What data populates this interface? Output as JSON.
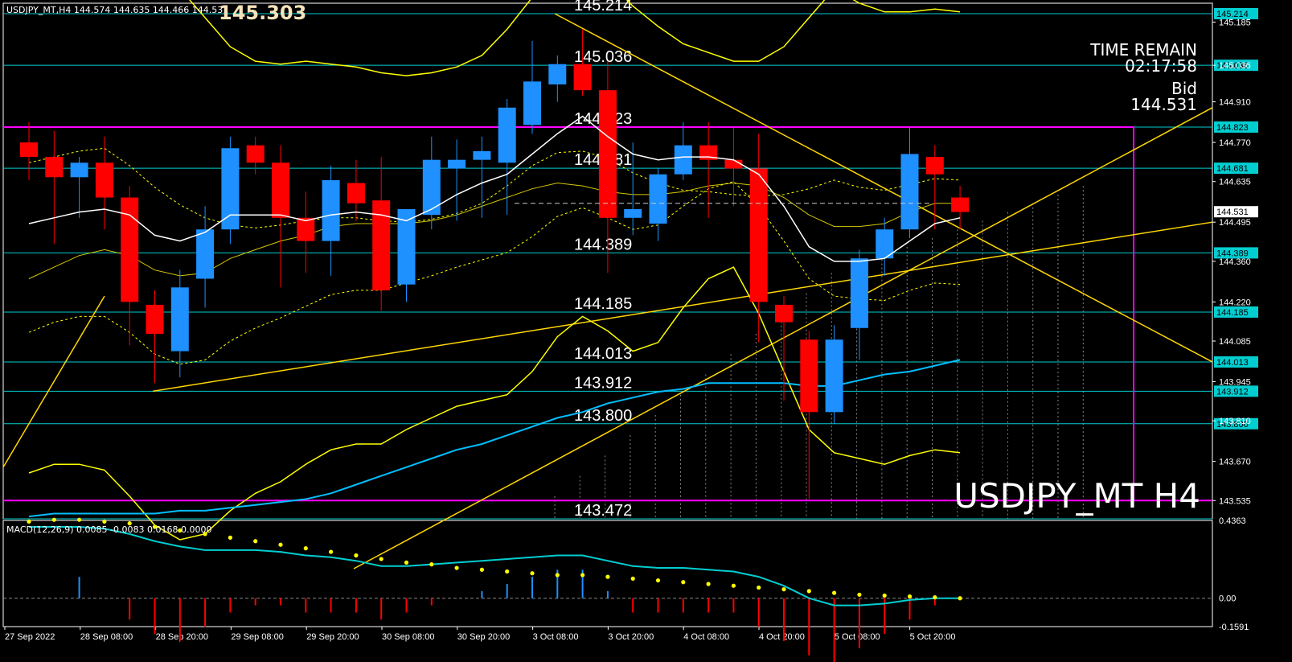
{
  "header": {
    "symbol": "USDJPY_MT,H4",
    "ohlc": "144.574 144.635 144.466 144.531",
    "big_price": "145.303"
  },
  "overlay": {
    "time_remain_label": "TIME REMAIN",
    "time_remain_value": "02:17:58",
    "bid_label": "Bid",
    "bid_value": "144.531",
    "symbol_watermark": "USDJPY_MT H4"
  },
  "macd": {
    "label": "MACD(12,26,9) 0.0085 -0.0083 0.0168 0.0000",
    "axis_ticks": [
      "0.4363",
      "0.00",
      "-0.1591"
    ],
    "range": [
      -0.1591,
      0.4363
    ]
  },
  "colors": {
    "bull": "#1e90ff",
    "bear": "#ff0000",
    "level_line": "#00ced1",
    "trend_line": "#ffd700",
    "bollinger": "#ffff00",
    "magenta": "#ff00ff",
    "ma_white": "#ffffff",
    "ma_cyan": "#00bfff"
  },
  "chart_data": {
    "type": "candlestick",
    "ylim": [
      143.472,
      145.25
    ],
    "y_ticks": [
      "145.185",
      "145.036",
      "144.910",
      "144.770",
      "144.635",
      "144.495",
      "144.360",
      "144.220",
      "144.085",
      "143.945",
      "143.810",
      "143.670",
      "143.535"
    ],
    "x_ticks": [
      "27 Sep 2022",
      "28 Sep 08:00",
      "28 Sep 20:00",
      "29 Sep 08:00",
      "29 Sep 20:00",
      "30 Sep 08:00",
      "30 Sep 20:00",
      "3 Oct 08:00",
      "3 Oct 20:00",
      "4 Oct 08:00",
      "4 Oct 20:00",
      "5 Oct 08:00",
      "5 Oct 20:00"
    ],
    "levels": [
      {
        "value": 145.214,
        "label": "145.214",
        "tag": "145.214"
      },
      {
        "value": 145.036,
        "label": "145.036",
        "tag": "145.036"
      },
      {
        "value": 144.823,
        "label": "144.823",
        "tag": "144.823"
      },
      {
        "value": 144.681,
        "label": "144.681",
        "tag": "144.681"
      },
      {
        "value": 144.389,
        "label": "144.389",
        "tag": "144.389"
      },
      {
        "value": 144.185,
        "label": "144.185",
        "tag": "144.185"
      },
      {
        "value": 144.013,
        "label": "144.013",
        "tag": "144.013"
      },
      {
        "value": 143.912,
        "label": "143.912",
        "tag": "143.912"
      },
      {
        "value": 143.8,
        "label": "143.800",
        "tag": "143.800"
      },
      {
        "value": 143.472,
        "label": "143.472",
        "tag": ""
      }
    ],
    "bid_tag": "144.531",
    "candles": [
      {
        "o": 144.77,
        "h": 144.84,
        "l": 144.64,
        "c": 144.72
      },
      {
        "o": 144.72,
        "h": 144.81,
        "l": 144.42,
        "c": 144.65
      },
      {
        "o": 144.65,
        "h": 144.72,
        "l": 144.51,
        "c": 144.7
      },
      {
        "o": 144.7,
        "h": 144.79,
        "l": 144.47,
        "c": 144.58
      },
      {
        "o": 144.58,
        "h": 144.62,
        "l": 144.07,
        "c": 144.22
      },
      {
        "o": 144.21,
        "h": 144.26,
        "l": 143.94,
        "c": 144.11
      },
      {
        "o": 144.05,
        "h": 144.33,
        "l": 143.96,
        "c": 144.27
      },
      {
        "o": 144.3,
        "h": 144.55,
        "l": 144.2,
        "c": 144.47
      },
      {
        "o": 144.47,
        "h": 144.79,
        "l": 144.42,
        "c": 144.75
      },
      {
        "o": 144.76,
        "h": 144.79,
        "l": 144.66,
        "c": 144.7
      },
      {
        "o": 144.7,
        "h": 144.76,
        "l": 144.27,
        "c": 144.51
      },
      {
        "o": 144.51,
        "h": 144.6,
        "l": 144.32,
        "c": 144.43
      },
      {
        "o": 144.43,
        "h": 144.69,
        "l": 144.31,
        "c": 144.64
      },
      {
        "o": 144.63,
        "h": 144.71,
        "l": 144.5,
        "c": 144.56
      },
      {
        "o": 144.57,
        "h": 144.72,
        "l": 144.19,
        "c": 144.26
      },
      {
        "o": 144.28,
        "h": 144.53,
        "l": 144.22,
        "c": 144.54
      },
      {
        "o": 144.52,
        "h": 144.79,
        "l": 144.47,
        "c": 144.71
      },
      {
        "o": 144.68,
        "h": 144.78,
        "l": 144.5,
        "c": 144.71
      },
      {
        "o": 144.71,
        "h": 144.79,
        "l": 144.51,
        "c": 144.74
      },
      {
        "o": 144.7,
        "h": 144.92,
        "l": 144.52,
        "c": 144.89
      },
      {
        "o": 144.83,
        "h": 145.12,
        "l": 144.8,
        "c": 144.98
      },
      {
        "o": 144.97,
        "h": 145.07,
        "l": 144.91,
        "c": 145.04
      },
      {
        "o": 145.04,
        "h": 145.16,
        "l": 144.93,
        "c": 144.95
      },
      {
        "o": 144.95,
        "h": 145.05,
        "l": 144.32,
        "c": 144.51
      },
      {
        "o": 144.51,
        "h": 144.77,
        "l": 144.45,
        "c": 144.54
      },
      {
        "o": 144.49,
        "h": 144.68,
        "l": 144.43,
        "c": 144.66
      },
      {
        "o": 144.66,
        "h": 144.84,
        "l": 144.64,
        "c": 144.76
      },
      {
        "o": 144.76,
        "h": 144.84,
        "l": 144.51,
        "c": 144.71
      },
      {
        "o": 144.71,
        "h": 144.82,
        "l": 144.55,
        "c": 144.68
      },
      {
        "o": 144.68,
        "h": 144.8,
        "l": 144.08,
        "c": 144.22
      },
      {
        "o": 144.21,
        "h": 144.24,
        "l": 143.88,
        "c": 144.15
      },
      {
        "o": 144.09,
        "h": 144.12,
        "l": 143.54,
        "c": 143.84
      },
      {
        "o": 143.84,
        "h": 144.14,
        "l": 143.8,
        "c": 144.09
      },
      {
        "o": 144.13,
        "h": 144.4,
        "l": 144.02,
        "c": 144.37
      },
      {
        "o": 144.37,
        "h": 144.51,
        "l": 144.31,
        "c": 144.47
      },
      {
        "o": 144.47,
        "h": 144.82,
        "l": 144.44,
        "c": 144.73
      },
      {
        "o": 144.72,
        "h": 144.76,
        "l": 144.47,
        "c": 144.66
      },
      {
        "o": 144.58,
        "h": 144.62,
        "l": 144.47,
        "c": 144.53
      }
    ],
    "ma_white": [
      144.49,
      144.51,
      144.53,
      144.54,
      144.52,
      144.45,
      144.43,
      144.46,
      144.52,
      144.52,
      144.52,
      144.5,
      144.52,
      144.53,
      144.52,
      144.5,
      144.54,
      144.59,
      144.63,
      144.66,
      144.73,
      144.8,
      144.86,
      144.79,
      144.73,
      144.71,
      144.72,
      144.72,
      144.71,
      144.66,
      144.55,
      144.41,
      144.36,
      144.36,
      144.37,
      144.43,
      144.49,
      144.51
    ],
    "ma_cyan": [
      143.48,
      143.49,
      143.49,
      143.49,
      143.49,
      143.49,
      143.5,
      143.5,
      143.51,
      143.52,
      143.53,
      143.54,
      143.56,
      143.59,
      143.62,
      143.65,
      143.68,
      143.71,
      143.73,
      143.76,
      143.79,
      143.82,
      143.84,
      143.87,
      143.89,
      143.91,
      143.92,
      143.94,
      143.94,
      143.94,
      143.94,
      143.93,
      143.93,
      143.95,
      143.97,
      143.98,
      144.0,
      144.02
    ],
    "bb_upper_outer": [
      145.6,
      145.6,
      145.6,
      145.6,
      145.5,
      145.4,
      145.3,
      145.2,
      145.1,
      145.05,
      145.04,
      145.05,
      145.04,
      145.03,
      145.01,
      145.0,
      145.01,
      145.03,
      145.07,
      145.16,
      145.27,
      145.34,
      145.36,
      145.33,
      145.24,
      145.17,
      145.11,
      145.08,
      145.05,
      145.05,
      145.1,
      145.2,
      145.3,
      145.25,
      145.22,
      145.22,
      145.23,
      145.22
    ],
    "bb_lower_outer": [
      143.63,
      143.66,
      143.66,
      143.64,
      143.55,
      143.45,
      143.4,
      143.42,
      143.5,
      143.56,
      143.6,
      143.66,
      143.71,
      143.73,
      143.73,
      143.78,
      143.82,
      143.86,
      143.88,
      143.9,
      143.98,
      144.1,
      144.17,
      144.12,
      144.05,
      144.08,
      144.2,
      144.3,
      144.34,
      144.18,
      143.98,
      143.78,
      143.7,
      143.68,
      143.66,
      143.69,
      143.71,
      143.7
    ],
    "bb_mid": [
      144.3,
      144.34,
      144.38,
      144.4,
      144.38,
      144.33,
      144.31,
      144.32,
      144.37,
      144.4,
      144.43,
      144.45,
      144.48,
      144.49,
      144.49,
      144.49,
      144.5,
      144.52,
      144.55,
      144.58,
      144.61,
      144.63,
      144.62,
      144.6,
      144.59,
      144.59,
      144.6,
      144.62,
      144.63,
      144.62,
      144.58,
      144.52,
      144.48,
      144.48,
      144.49,
      144.53,
      144.56,
      144.56
    ],
    "macd_signal": [
      0.43,
      0.44,
      0.44,
      0.43,
      0.42,
      0.4,
      0.38,
      0.36,
      0.34,
      0.32,
      0.3,
      0.28,
      0.26,
      0.24,
      0.22,
      0.2,
      0.19,
      0.17,
      0.16,
      0.15,
      0.14,
      0.13,
      0.13,
      0.12,
      0.11,
      0.1,
      0.09,
      0.08,
      0.07,
      0.06,
      0.05,
      0.04,
      0.03,
      0.02,
      0.015,
      0.01,
      0.005,
      0.0
    ],
    "macd_main": [
      0.4,
      0.4,
      0.4,
      0.39,
      0.36,
      0.32,
      0.29,
      0.27,
      0.27,
      0.27,
      0.26,
      0.24,
      0.23,
      0.21,
      0.18,
      0.18,
      0.19,
      0.2,
      0.21,
      0.22,
      0.23,
      0.24,
      0.24,
      0.21,
      0.18,
      0.17,
      0.17,
      0.16,
      0.15,
      0.12,
      0.07,
      0.0,
      -0.04,
      -0.04,
      -0.03,
      -0.01,
      0.0,
      0.0
    ],
    "macd_hist": [
      0.0,
      0.0,
      0.03,
      0.0,
      -0.03,
      -0.05,
      -0.06,
      -0.04,
      -0.02,
      -0.01,
      -0.01,
      -0.02,
      -0.02,
      -0.02,
      -0.03,
      -0.02,
      -0.01,
      0.0,
      0.01,
      0.02,
      0.03,
      0.04,
      0.04,
      0.01,
      -0.02,
      -0.02,
      -0.02,
      -0.02,
      -0.02,
      -0.04,
      -0.06,
      -0.08,
      -0.09,
      -0.07,
      -0.05,
      -0.03,
      -0.01,
      0.0
    ]
  }
}
